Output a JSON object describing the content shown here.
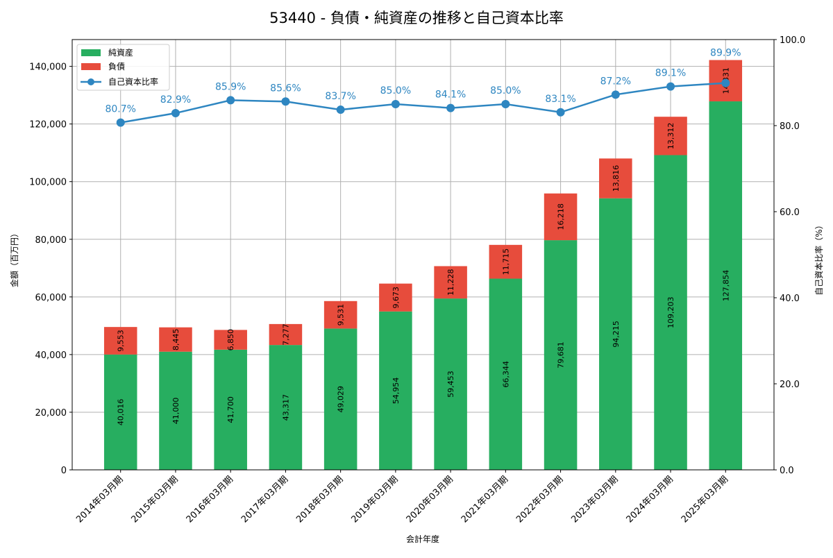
{
  "chart_data": {
    "type": "bar",
    "title": "53440 - 負債・純資産の推移と自己資本比率",
    "xlabel": "会計年度",
    "ylabel": "金額（百万円）",
    "y2label": "自己資本比率（%）",
    "categories": [
      "2014年03月期",
      "2015年03月期",
      "2016年03月期",
      "2017年03月期",
      "2018年03月期",
      "2019年03月期",
      "2020年03月期",
      "2021年03月期",
      "2022年03月期",
      "2023年03月期",
      "2024年03月期",
      "2025年03月期"
    ],
    "series": [
      {
        "name": "純資産",
        "type": "bar",
        "color": "#27ae60",
        "values": [
          40016,
          41000,
          41700,
          43317,
          49029,
          54954,
          59453,
          66344,
          79681,
          94215,
          109203,
          127854
        ]
      },
      {
        "name": "負債",
        "type": "bar",
        "color": "#e74c3c",
        "values": [
          9553,
          8445,
          6850,
          7277,
          9531,
          9673,
          11228,
          11715,
          16218,
          13816,
          13312,
          14331
        ]
      },
      {
        "name": "自己資本比率",
        "type": "line",
        "axis": "right",
        "color": "#2e86c1",
        "values": [
          80.7,
          82.9,
          85.9,
          85.6,
          83.7,
          85.0,
          84.1,
          85.0,
          83.1,
          87.2,
          89.1,
          89.9
        ]
      }
    ],
    "ylim": [
      0,
      149294
    ],
    "y2lim": [
      0,
      100
    ],
    "yticks": [
      "0",
      "20,000",
      "40,000",
      "60,000",
      "80,000",
      "100,000",
      "120,000",
      "140,000"
    ],
    "ytick_values": [
      0,
      20000,
      40000,
      60000,
      80000,
      100000,
      120000,
      140000
    ],
    "y2ticks": [
      "0.0",
      "20.0",
      "40.0",
      "60.0",
      "80.0",
      "100.0"
    ],
    "y2tick_values": [
      0,
      20,
      40,
      60,
      80,
      100
    ],
    "grid": true,
    "legend": "top-left"
  }
}
